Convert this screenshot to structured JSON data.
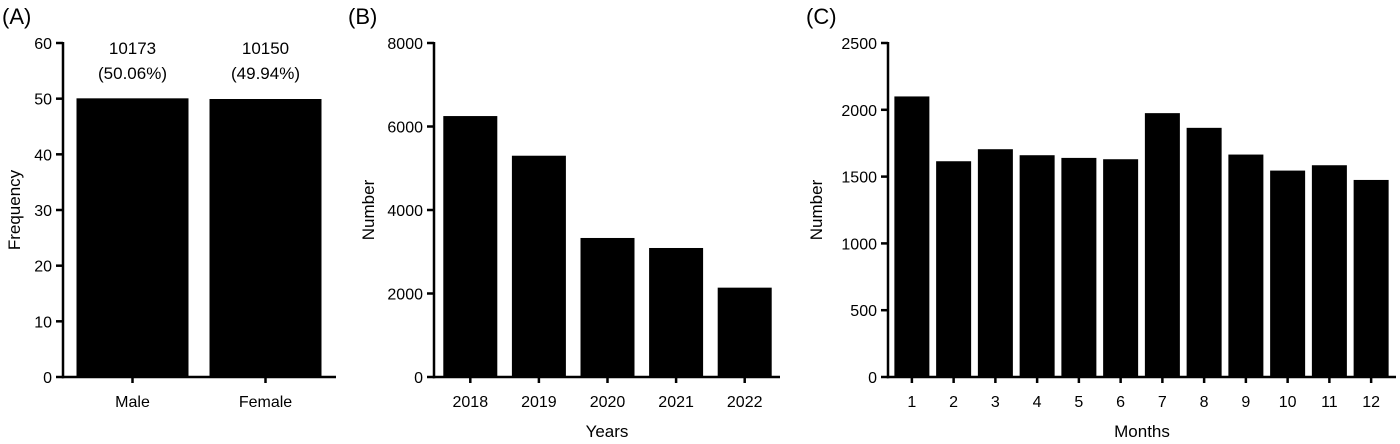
{
  "chart_data": [
    {
      "panel": "(A)",
      "type": "bar",
      "categories": [
        "Male",
        "Female"
      ],
      "values": [
        50.06,
        49.94
      ],
      "data_labels": [
        [
          "10173",
          "(50.06%)"
        ],
        [
          "10150",
          "(49.94%)"
        ]
      ],
      "xlabel": "",
      "ylabel": "Frequency",
      "ylim": [
        0,
        60
      ],
      "yticks": [
        0,
        10,
        20,
        30,
        40,
        50,
        60
      ],
      "bar_color": "#000000",
      "grid": false
    },
    {
      "panel": "(B)",
      "type": "bar",
      "categories": [
        "2018",
        "2019",
        "2020",
        "2021",
        "2022"
      ],
      "values": [
        6250,
        5300,
        3330,
        3090,
        2140
      ],
      "xlabel": "Years",
      "ylabel": "Number",
      "ylim": [
        0,
        8000
      ],
      "yticks": [
        0,
        2000,
        4000,
        6000,
        8000
      ],
      "bar_color": "#000000",
      "grid": false
    },
    {
      "panel": "(C)",
      "type": "bar",
      "categories": [
        "1",
        "2",
        "3",
        "4",
        "5",
        "6",
        "7",
        "8",
        "9",
        "10",
        "11",
        "12"
      ],
      "values": [
        2100,
        1615,
        1705,
        1660,
        1640,
        1630,
        1975,
        1865,
        1665,
        1545,
        1585,
        1475
      ],
      "xlabel": "Months",
      "ylabel": "Number",
      "ylim": [
        0,
        2500
      ],
      "yticks": [
        0,
        500,
        1000,
        1500,
        2000,
        2500
      ],
      "bar_color": "#000000",
      "grid": false
    }
  ]
}
